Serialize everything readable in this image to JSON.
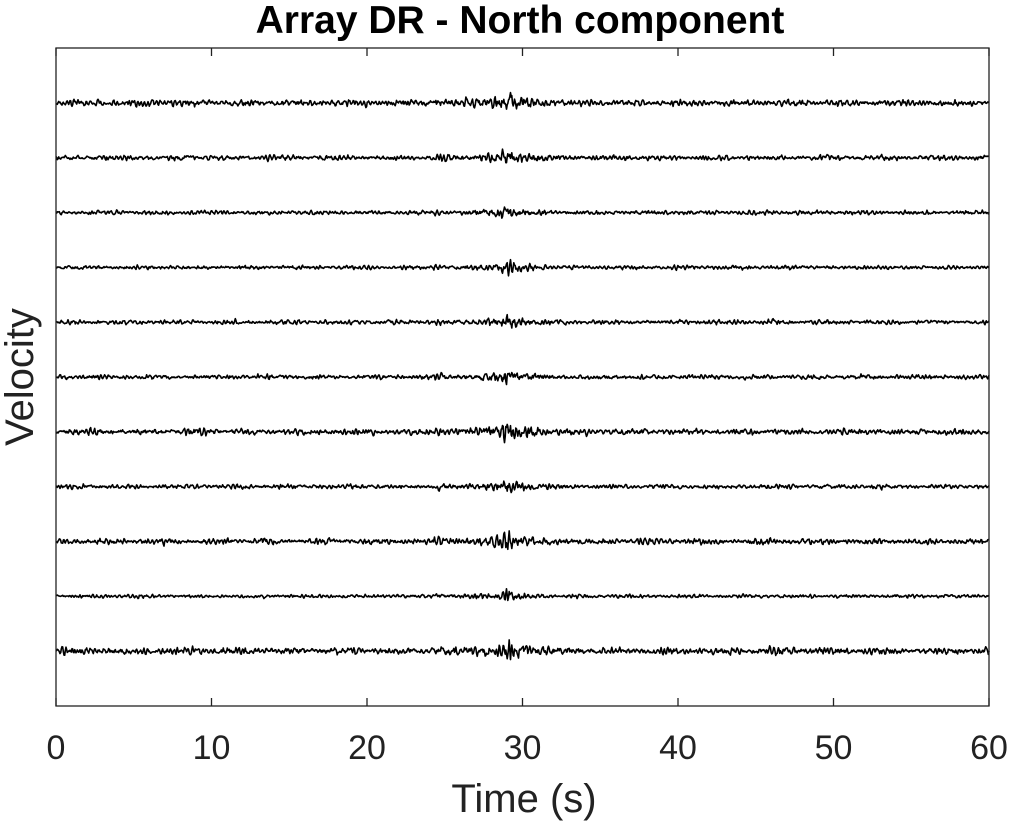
{
  "chart_data": {
    "type": "line",
    "title": "Array DR - North component",
    "xlabel": "Time (s)",
    "ylabel": "Velocity",
    "xlim": [
      0,
      60
    ],
    "xticks": [
      0,
      10,
      20,
      30,
      40,
      50,
      60
    ],
    "xtick_labels": [
      "0",
      "10",
      "20",
      "30",
      "40",
      "50",
      "60"
    ],
    "yticks_shown": false,
    "grid": false,
    "legend": "none",
    "trace_count": 11,
    "trace_color": "#000000",
    "event_onset_s": 24.5,
    "event_peak_s": 29.0,
    "series": [
      {
        "trace": 1,
        "amplitude": 1.0
      },
      {
        "trace": 2,
        "amplitude": 0.8
      },
      {
        "trace": 3,
        "amplitude": 0.65
      },
      {
        "trace": 4,
        "amplitude": 0.6
      },
      {
        "trace": 5,
        "amplitude": 0.7
      },
      {
        "trace": 6,
        "amplitude": 0.72
      },
      {
        "trace": 7,
        "amplitude": 0.95
      },
      {
        "trace": 8,
        "amplitude": 0.7
      },
      {
        "trace": 9,
        "amplitude": 0.9
      },
      {
        "trace": 10,
        "amplitude": 0.55
      },
      {
        "trace": 11,
        "amplitude": 1.1
      }
    ]
  }
}
